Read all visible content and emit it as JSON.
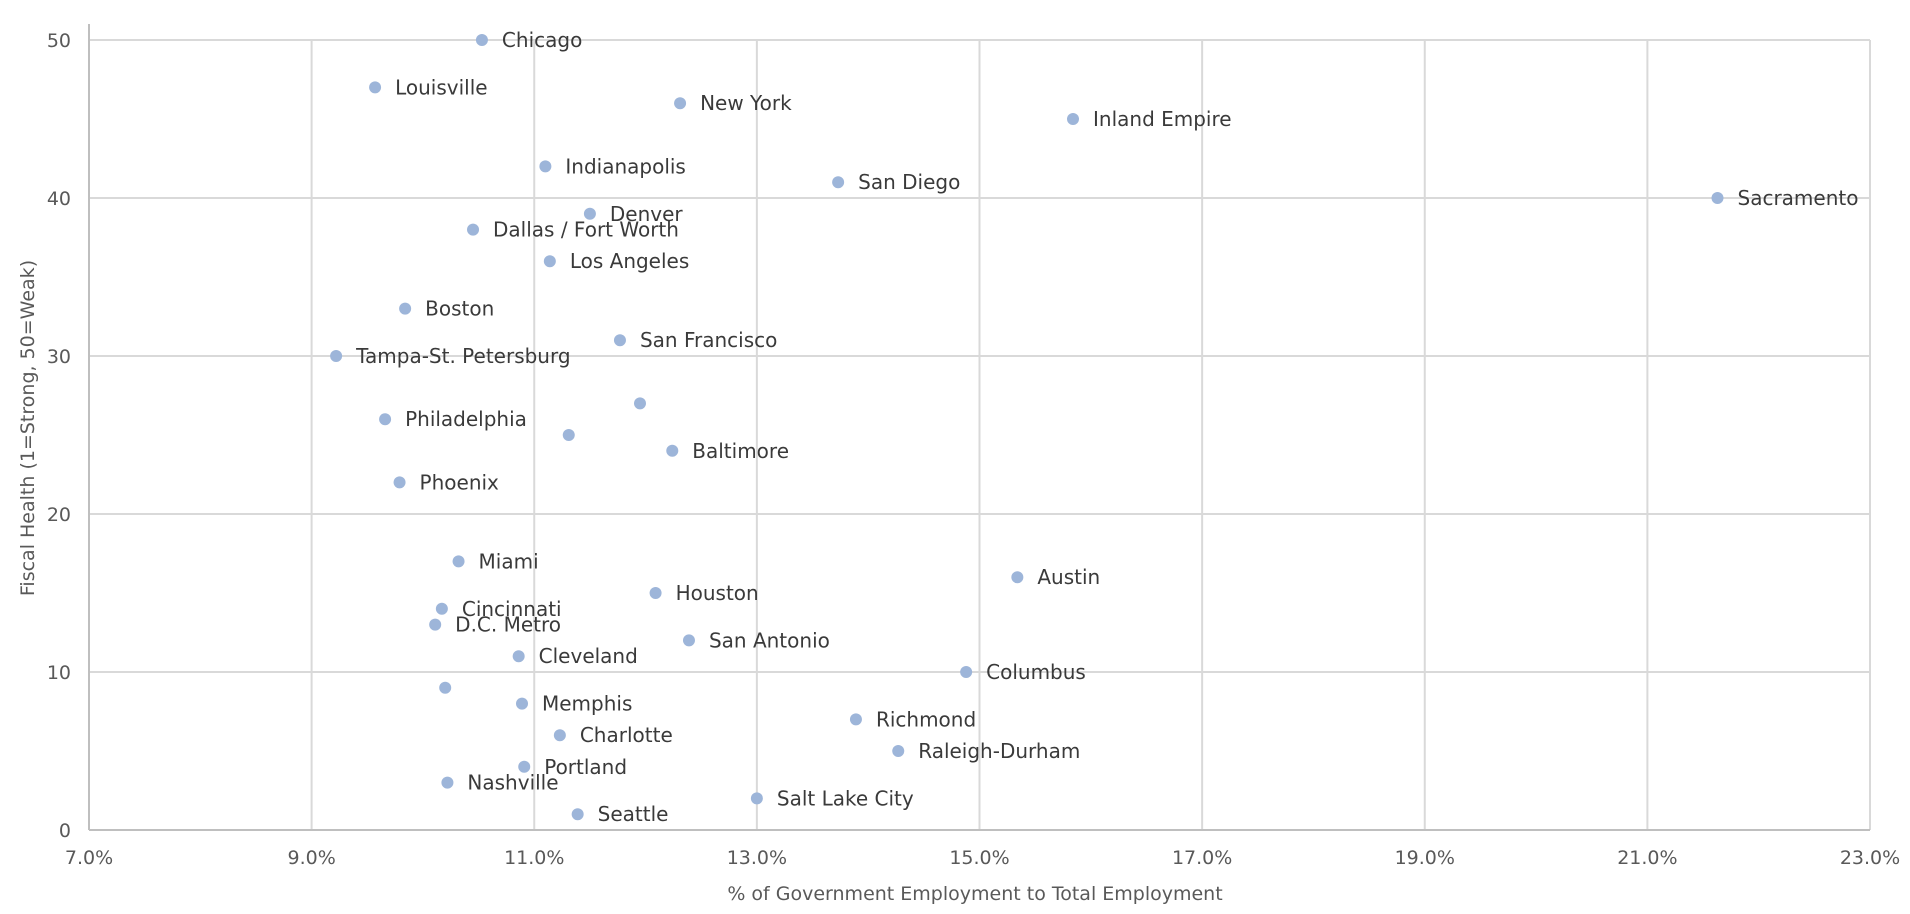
{
  "chart_data": {
    "type": "scatter",
    "xlabel": "% of Government Employment to Total Employment",
    "ylabel": "Fiscal Health (1=Strong, 50=Weak)",
    "xlim": [
      0.07,
      0.23
    ],
    "ylim": [
      0,
      50
    ],
    "x_ticks": [
      0.07,
      0.09,
      0.11,
      0.13,
      0.15,
      0.17,
      0.19,
      0.21,
      0.23
    ],
    "x_tick_labels": [
      "7.0%",
      "9.0%",
      "11.0%",
      "13.0%",
      "15.0%",
      "17.0%",
      "19.0%",
      "21.0%",
      "23.0%"
    ],
    "y_ticks": [
      0,
      10,
      20,
      30,
      40,
      50
    ],
    "y_tick_labels": [
      "0",
      "10",
      "20",
      "30",
      "40",
      "50"
    ],
    "grid": true,
    "marker_color": "#9db5d9",
    "points": [
      {
        "label": "Chicago",
        "x": 0.1053,
        "y": 50
      },
      {
        "label": "Louisville",
        "x": 0.0957,
        "y": 47
      },
      {
        "label": "New York",
        "x": 0.1231,
        "y": 46
      },
      {
        "label": "Inland Empire",
        "x": 0.1584,
        "y": 45
      },
      {
        "label": "Indianapolis",
        "x": 0.111,
        "y": 42
      },
      {
        "label": "San Diego",
        "x": 0.1373,
        "y": 41
      },
      {
        "label": "Sacramento",
        "x": 0.2163,
        "y": 40
      },
      {
        "label": "Denver",
        "x": 0.115,
        "y": 39
      },
      {
        "label": "Dallas / Fort Worth",
        "x": 0.1045,
        "y": 38
      },
      {
        "label": "Los Angeles",
        "x": 0.1114,
        "y": 36
      },
      {
        "label": "Boston",
        "x": 0.0984,
        "y": 33
      },
      {
        "label": "San Francisco",
        "x": 0.1177,
        "y": 31
      },
      {
        "label": "Tampa-St. Petersburg",
        "x": 0.0922,
        "y": 30
      },
      {
        "label": "",
        "x": 0.1195,
        "y": 27
      },
      {
        "label": "Philadelphia",
        "x": 0.0966,
        "y": 26
      },
      {
        "label": "",
        "x": 0.1131,
        "y": 25
      },
      {
        "label": "Baltimore",
        "x": 0.1224,
        "y": 24
      },
      {
        "label": "Phoenix",
        "x": 0.0979,
        "y": 22
      },
      {
        "label": "Miami",
        "x": 0.1032,
        "y": 17
      },
      {
        "label": "Austin",
        "x": 0.1534,
        "y": 16
      },
      {
        "label": "Houston",
        "x": 0.1209,
        "y": 15
      },
      {
        "label": "Cincinnati",
        "x": 0.1017,
        "y": 14
      },
      {
        "label": "D.C. Metro",
        "x": 0.1011,
        "y": 13
      },
      {
        "label": "San Antonio",
        "x": 0.1239,
        "y": 12
      },
      {
        "label": "Cleveland",
        "x": 0.1086,
        "y": 11
      },
      {
        "label": "Columbus",
        "x": 0.1488,
        "y": 10
      },
      {
        "label": "",
        "x": 0.102,
        "y": 9
      },
      {
        "label": "Memphis",
        "x": 0.1089,
        "y": 8
      },
      {
        "label": "Richmond",
        "x": 0.1389,
        "y": 7
      },
      {
        "label": "Charlotte",
        "x": 0.1123,
        "y": 6
      },
      {
        "label": "Raleigh-Durham",
        "x": 0.1427,
        "y": 5
      },
      {
        "label": "Portland",
        "x": 0.1091,
        "y": 4
      },
      {
        "label": "Nashville",
        "x": 0.1022,
        "y": 3
      },
      {
        "label": "Salt Lake City",
        "x": 0.13,
        "y": 2
      },
      {
        "label": "Seattle",
        "x": 0.1139,
        "y": 1
      }
    ]
  }
}
